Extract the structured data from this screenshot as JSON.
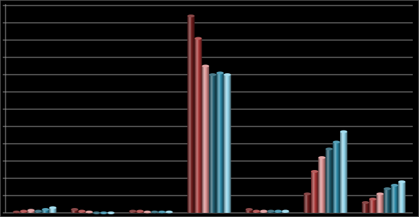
{
  "chart_data": {
    "type": "bar",
    "categories": [
      null,
      null,
      null,
      null,
      null,
      null,
      null
    ],
    "series": [
      {
        "color": "#6e1c1c",
        "values": [
          0.05,
          0.2,
          0.1,
          11.4,
          0.2,
          1.1,
          0.6
        ]
      },
      {
        "color": "#a83434",
        "values": [
          0.1,
          0.1,
          0.1,
          10.1,
          0.1,
          2.4,
          0.8
        ]
      },
      {
        "color": "#d98f8f",
        "values": [
          0.15,
          0.05,
          0.05,
          8.5,
          0.1,
          3.2,
          1.1
        ]
      },
      {
        "color": "#1e5b6e",
        "values": [
          0.1,
          0,
          0.05,
          8.0,
          0.1,
          3.7,
          1.4
        ]
      },
      {
        "color": "#2a88a6",
        "values": [
          0.2,
          0,
          0.05,
          8.1,
          0.1,
          4.1,
          1.6
        ]
      },
      {
        "color": "#8fd4ea",
        "values": [
          0.3,
          0,
          0.05,
          8.0,
          0.1,
          4.7,
          1.8
        ]
      }
    ],
    "ylim": [
      0,
      12
    ],
    "yticks": [
      0,
      1,
      2,
      3,
      4,
      5,
      6,
      7,
      8,
      9,
      10,
      11,
      12
    ],
    "grid": true
  }
}
